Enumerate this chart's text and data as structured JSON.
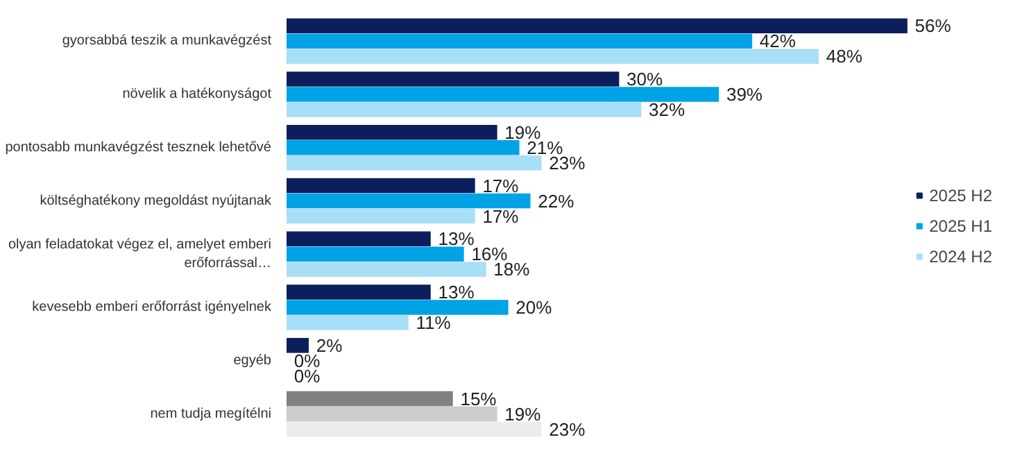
{
  "chart_data": {
    "type": "bar",
    "orientation": "horizontal",
    "legend": "right",
    "categories": [
      "gyorsabbá teszik a munkavégzést",
      "növelik a hatékonyságot",
      "pontosabb munkavégzést tesznek lehetővé",
      "költséghatékony megoldást nyújtanak",
      "olyan feladatokat végez el, amelyet emberi erőforrással…",
      "kevesebb emberi erőforrást igényelnek",
      "egyéb",
      "nem tudja megítélni"
    ],
    "series": [
      {
        "name": "2025 H2",
        "color": "#0c1f5c",
        "colors": [
          "#0c1f5c",
          "#0c1f5c",
          "#0c1f5c",
          "#0c1f5c",
          "#0c1f5c",
          "#0c1f5c",
          "#0c1f5c",
          "#808080"
        ],
        "values": [
          56,
          30,
          19,
          17,
          13,
          13,
          2,
          15
        ],
        "value_labels": [
          "56%",
          "30%",
          "19%",
          "17%",
          "13%",
          "13%",
          "2%",
          "15%"
        ]
      },
      {
        "name": "2025 H1",
        "color": "#00a3e6",
        "colors": [
          "#00a3e6",
          "#00a3e6",
          "#00a3e6",
          "#00a3e6",
          "#00a3e6",
          "#00a3e6",
          "#00a3e6",
          "#cccccc"
        ],
        "values": [
          42,
          39,
          21,
          22,
          16,
          20,
          0,
          19
        ],
        "value_labels": [
          "42%",
          "39%",
          "21%",
          "22%",
          "16%",
          "20%",
          "0%",
          "19%"
        ]
      },
      {
        "name": "2024 H2",
        "color": "#a9def7",
        "colors": [
          "#a9def7",
          "#a9def7",
          "#a9def7",
          "#a9def7",
          "#a9def7",
          "#a9def7",
          "#a9def7",
          "#ececec"
        ],
        "values": [
          48,
          32,
          23,
          17,
          18,
          11,
          0,
          23
        ],
        "value_labels": [
          "48%",
          "32%",
          "23%",
          "17%",
          "18%",
          "11%",
          "0%",
          "23%"
        ]
      }
    ]
  }
}
